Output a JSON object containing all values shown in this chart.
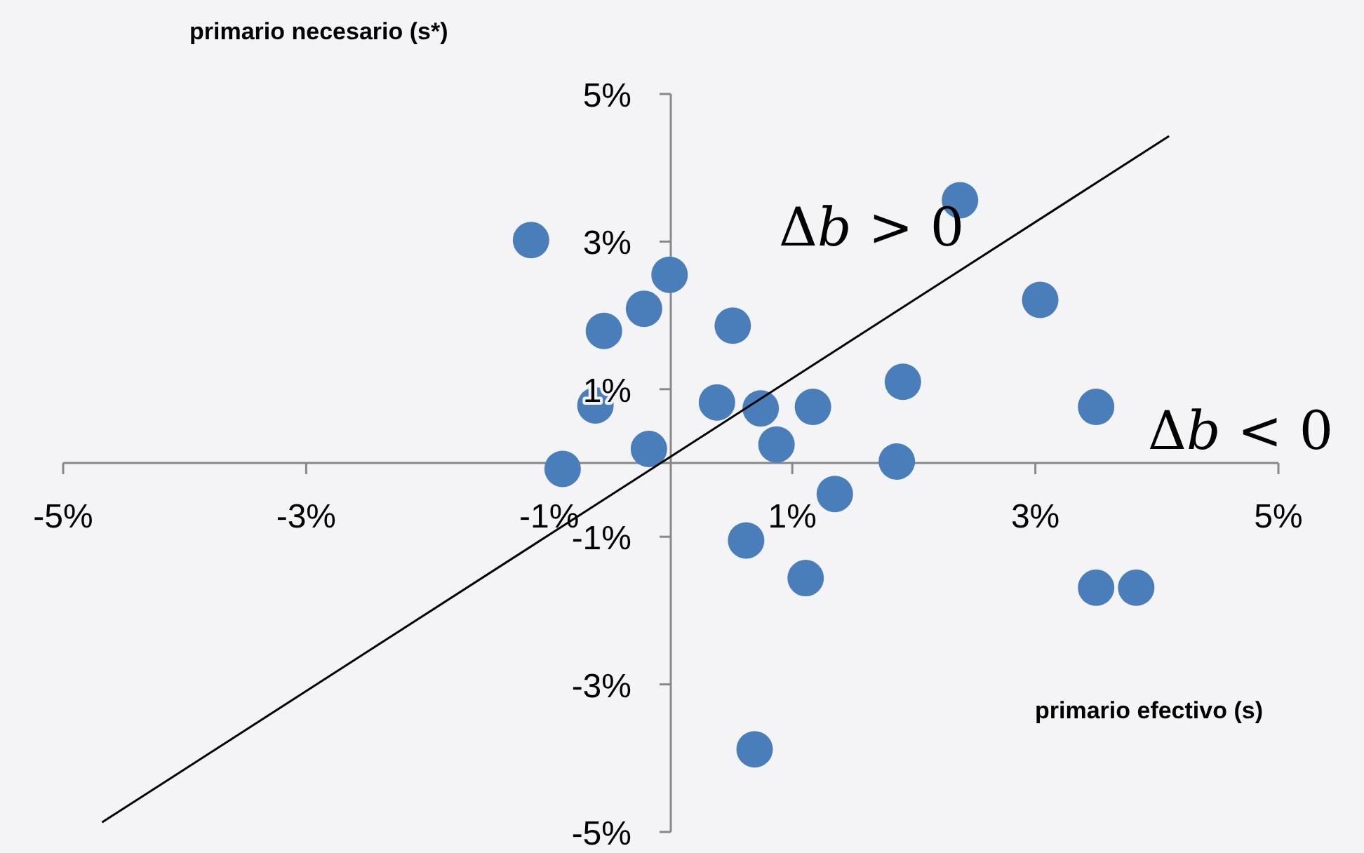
{
  "chart_data": {
    "type": "scatter",
    "xlabel": "primario efectivo (s)",
    "ylabel": "primario necesario (s*)",
    "xlim": [
      -5,
      5
    ],
    "ylim": [
      -5,
      5
    ],
    "xticks": [
      {
        "value": -5,
        "label": "-5%"
      },
      {
        "value": -3,
        "label": "-3%"
      },
      {
        "value": -1,
        "label": "-1%"
      },
      {
        "value": 1,
        "label": "1%"
      },
      {
        "value": 3,
        "label": "3%"
      },
      {
        "value": 5,
        "label": "5%"
      }
    ],
    "yticks": [
      {
        "value": -5,
        "label": "-5%"
      },
      {
        "value": -3,
        "label": "-3%"
      },
      {
        "value": -1,
        "label": "-1%"
      },
      {
        "value": 1,
        "label": "1%"
      },
      {
        "value": 3,
        "label": "3%"
      },
      {
        "value": 5,
        "label": "5%"
      }
    ],
    "grid": false,
    "marker": "circle",
    "annotations": [
      "Δb > 0",
      "Δb < 0"
    ],
    "series": [
      {
        "color": "#4a7ebb",
        "x": [
          -1.15,
          -0.01,
          -0.22,
          -0.55,
          0.51,
          -0.62,
          -0.89,
          -0.18,
          0.38,
          0.74,
          1.17,
          0.87,
          1.91,
          1.86,
          1.35,
          0.62,
          1.11,
          2.38,
          3.04,
          3.5,
          3.5,
          3.83,
          0.69
        ],
        "values": [
          3.02,
          2.55,
          2.09,
          1.79,
          1.86,
          0.78,
          -0.08,
          0.19,
          0.82,
          0.74,
          0.76,
          0.25,
          1.1,
          0.02,
          -0.42,
          -1.05,
          -1.56,
          3.56,
          2.21,
          0.76,
          -1.69,
          -1.69,
          -3.88
        ]
      },
      {
        "type": "line",
        "color": "#000000",
        "x": [
          -4.68,
          4.1
        ],
        "values": [
          -4.87,
          4.43
        ],
        "marker": "none",
        "line_style": "solid"
      }
    ]
  }
}
